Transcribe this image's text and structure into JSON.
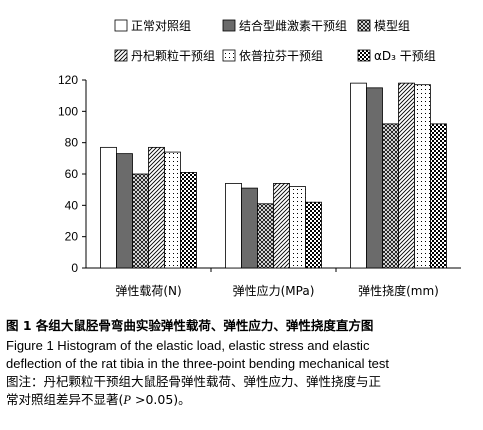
{
  "chart_data": {
    "type": "bar",
    "title": "",
    "xlabel": "",
    "ylabel": "",
    "ylim": [
      0,
      120
    ],
    "yticks": [
      "0",
      "20",
      "40",
      "60",
      "80",
      "100",
      "120"
    ],
    "categories": [
      "弹性载荷(N)",
      "弹性应力(MPa)",
      "弹性挠度(mm)"
    ],
    "legend_position": "top",
    "series": [
      {
        "name": "正常对照组",
        "values": [
          77,
          54,
          118
        ],
        "pattern": "white",
        "color": "#ffffff"
      },
      {
        "name": "结合型雌激素干预组",
        "values": [
          73,
          51,
          115
        ],
        "pattern": "solid",
        "color": "#6b6b6b"
      },
      {
        "name": "模型组",
        "values": [
          60,
          41,
          92
        ],
        "pattern": "crosshatch",
        "color": "#000000"
      },
      {
        "name": "丹杞颗粒干预组",
        "values": [
          77,
          54,
          118
        ],
        "pattern": "diagonal",
        "color": "#000000"
      },
      {
        "name": "依普拉芬干预组",
        "values": [
          74,
          52,
          117
        ],
        "pattern": "dots",
        "color": "#000000"
      },
      {
        "name": "αD₃ 干预组",
        "values": [
          61,
          42,
          92
        ],
        "pattern": "checker",
        "color": "#000000"
      }
    ]
  },
  "caption": {
    "title": "图 1   各组大鼠胫骨弯曲实验弹性载荷、弹性应力、弹性挠度直方图",
    "english_line1": "Figure 1    Histogram of the elastic load, elastic stress and elastic",
    "english_line2": "deflection of the rat tibia in the three-point bending mechanical test",
    "note_line1": "图注：丹杞颗粒干预组大鼠胫骨弹性载荷、弹性应力、弹性挠度与正",
    "note_line2_prefix": "常对照组差异不显著(",
    "note_line2_p": "P",
    "note_line2_suffix": " >0.05)。"
  }
}
